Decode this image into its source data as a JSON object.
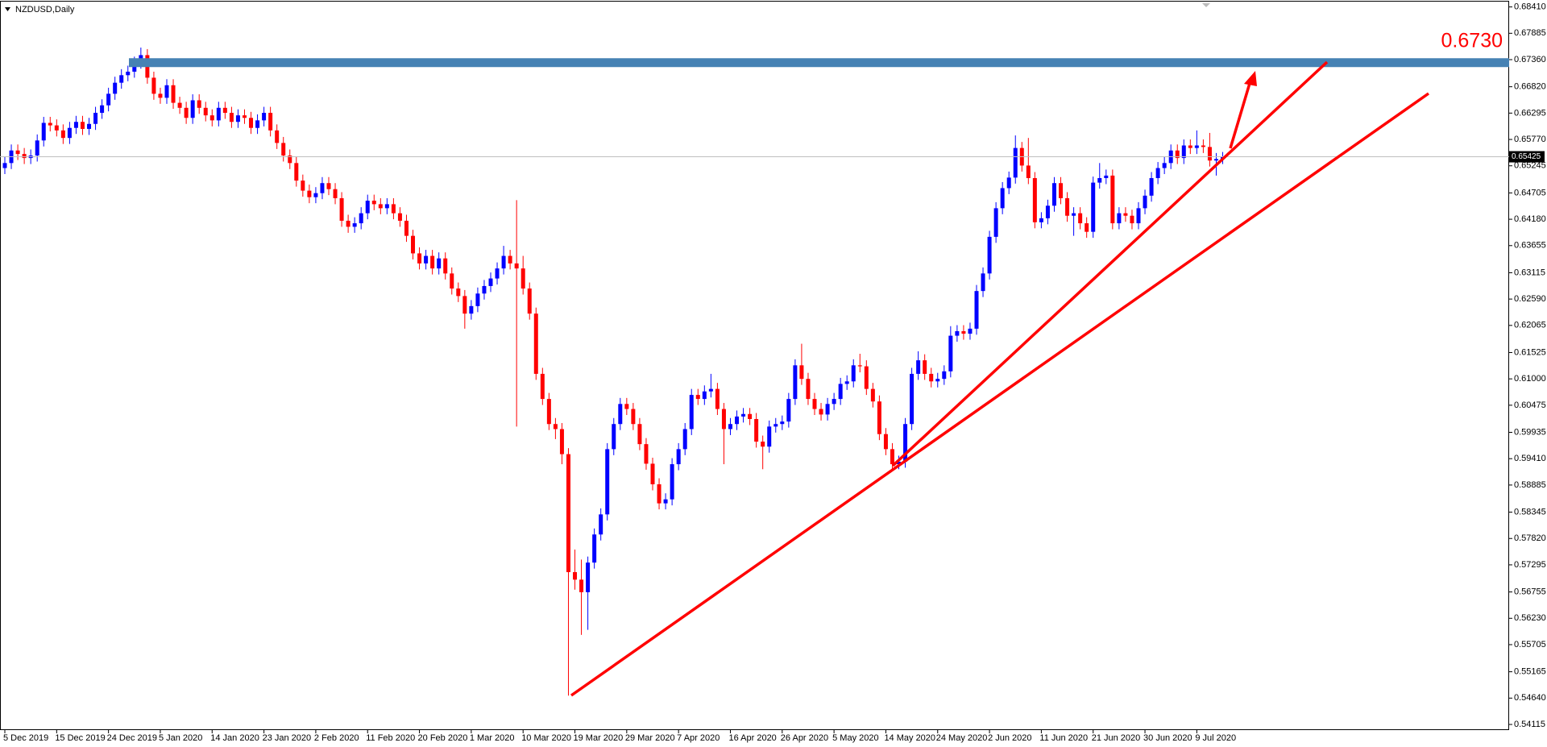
{
  "chart_data": {
    "type": "candlestick",
    "title": "NZDUSD,Daily",
    "up_color": "#0000ff",
    "down_color": "#ff0000",
    "level": {
      "value": 0.673,
      "label": "0.6730"
    },
    "level_color": "#4682b4",
    "last_price": 0.65425,
    "ylim": [
      0.54003,
      0.68516
    ],
    "yticks": [
      {
        "value": 0.6841,
        "label": "0.68410"
      },
      0.67885,
      {
        "value": 0.6736,
        "label": "0.67360"
      },
      {
        "value": 0.6682,
        "label": "0.66820"
      },
      0.66295,
      {
        "value": 0.6577,
        "label": "0.65770"
      },
      0.65245,
      0.64705,
      {
        "value": 0.6418,
        "label": "0.64180"
      },
      0.63655,
      0.63115,
      {
        "value": 0.6259,
        "label": "0.62590"
      },
      0.62065,
      0.61525,
      {
        "value": 0.61,
        "label": "0.61000"
      },
      0.60475,
      0.59935,
      {
        "value": 0.5941,
        "label": "0.59410"
      },
      0.58885,
      0.58345,
      {
        "value": 0.5782,
        "label": "0.57820"
      },
      0.57295,
      0.56755,
      {
        "value": 0.5623,
        "label": "0.56230"
      },
      0.55705,
      0.55165,
      {
        "value": 0.5464,
        "label": "0.54640"
      },
      0.54115
    ],
    "categories": [
      "5 Dec 2019",
      null,
      null,
      null,
      null,
      null,
      null,
      null,
      "15 Dec 2019",
      null,
      null,
      null,
      null,
      null,
      null,
      null,
      "24 Dec 2019",
      null,
      null,
      null,
      null,
      null,
      null,
      null,
      "5 Jan 2020",
      null,
      null,
      null,
      null,
      null,
      null,
      null,
      "14 Jan 2020",
      null,
      null,
      null,
      null,
      null,
      null,
      null,
      "23 Jan 2020",
      null,
      null,
      null,
      null,
      null,
      null,
      null,
      "2 Feb 2020",
      null,
      null,
      null,
      null,
      null,
      null,
      null,
      "11 Feb 2020",
      null,
      null,
      null,
      null,
      null,
      null,
      null,
      "20 Feb 2020",
      null,
      null,
      null,
      null,
      null,
      null,
      null,
      "1 Mar 2020",
      null,
      null,
      null,
      null,
      null,
      null,
      null,
      "10 Mar 2020",
      null,
      null,
      null,
      null,
      null,
      null,
      null,
      "19 Mar 2020",
      null,
      null,
      null,
      null,
      null,
      null,
      null,
      "29 Mar 2020",
      null,
      null,
      null,
      null,
      null,
      null,
      null,
      "7 Apr 2020",
      null,
      null,
      null,
      null,
      null,
      null,
      null,
      "16 Apr 2020",
      null,
      null,
      null,
      null,
      null,
      null,
      null,
      "26 Apr 2020",
      null,
      null,
      null,
      null,
      null,
      null,
      null,
      "5 May 2020",
      null,
      null,
      null,
      null,
      null,
      null,
      null,
      "14 May 2020",
      null,
      null,
      null,
      null,
      null,
      null,
      null,
      "24 May 2020",
      null,
      null,
      null,
      null,
      null,
      null,
      null,
      "2 Jun 2020",
      null,
      null,
      null,
      null,
      null,
      null,
      null,
      "11 Jun 2020",
      null,
      null,
      null,
      null,
      null,
      null,
      null,
      "21 Jun 2020",
      null,
      null,
      null,
      null,
      null,
      null,
      null,
      "30 Jun 2020",
      null,
      null,
      null,
      null,
      null,
      null,
      null,
      "9 Jul 2020",
      null,
      null,
      null,
      null
    ],
    "open": [
      0.652,
      0.653,
      0.6555,
      0.6548,
      0.654,
      0.6545,
      0.6575,
      0.661,
      0.6605,
      0.6595,
      0.658,
      0.66,
      0.6612,
      0.6598,
      0.6608,
      0.663,
      0.6645,
      0.6668,
      0.669,
      0.6705,
      0.6712,
      0.673,
      0.6745,
      0.67,
      0.6668,
      0.666,
      0.6685,
      0.665,
      0.664,
      0.662,
      0.6655,
      0.664,
      0.6625,
      0.6615,
      0.664,
      0.663,
      0.6612,
      0.6625,
      0.662,
      0.66,
      0.6615,
      0.663,
      0.6595,
      0.657,
      0.6545,
      0.653,
      0.6495,
      0.6475,
      0.6462,
      0.647,
      0.649,
      0.6478,
      0.646,
      0.6415,
      0.6403,
      0.641,
      0.643,
      0.6455,
      0.6448,
      0.644,
      0.6448,
      0.643,
      0.6415,
      0.6385,
      0.635,
      0.633,
      0.6345,
      0.632,
      0.634,
      0.631,
      0.628,
      0.6265,
      0.623,
      0.6245,
      0.627,
      0.6285,
      0.63,
      0.632,
      0.6345,
      0.633,
      0.632,
      0.628,
      0.623,
      0.611,
      0.606,
      0.601,
      0.6,
      0.595,
      0.5715,
      0.57,
      0.5675,
      0.5734,
      0.579,
      0.583,
      0.596,
      0.601,
      0.605,
      0.604,
      0.601,
      0.597,
      0.5931,
      0.589,
      0.5852,
      0.586,
      0.593,
      0.596,
      0.6,
      0.6068,
      0.606,
      0.6075,
      0.608,
      0.604,
      0.6,
      0.601,
      0.6025,
      0.603,
      0.602,
      0.5975,
      0.5965,
      0.6005,
      0.601,
      0.6015,
      0.606,
      0.6127,
      0.61,
      0.606,
      0.604,
      0.6029,
      0.605,
      0.606,
      0.609,
      0.6095,
      0.6127,
      0.6125,
      0.608,
      0.6055,
      0.599,
      0.596,
      0.593,
      0.5935,
      0.601,
      0.611,
      0.6137,
      0.611,
      0.6095,
      0.61,
      0.6115,
      0.6186,
      0.6195,
      0.619,
      0.62,
      0.6275,
      0.631,
      0.6383,
      0.644,
      0.648,
      0.6501,
      0.656,
      0.6525,
      0.65,
      0.6412,
      0.642,
      0.6445,
      0.649,
      0.646,
      0.6425,
      0.643,
      0.641,
      0.6393,
      0.6491,
      0.65,
      0.6505,
      0.641,
      0.643,
      0.6425,
      0.641,
      0.644,
      0.6465,
      0.65,
      0.652,
      0.653,
      0.6555,
      0.654,
      0.6565,
      0.656,
      0.6565,
      0.6562,
      0.6535,
      0.6538
    ],
    "high": [
      0.6542,
      0.6567,
      0.6567,
      0.656,
      0.6557,
      0.6587,
      0.6622,
      0.6622,
      0.6617,
      0.6607,
      0.6612,
      0.6624,
      0.6624,
      0.662,
      0.6642,
      0.6657,
      0.668,
      0.6702,
      0.6717,
      0.6724,
      0.6742,
      0.676,
      0.6757,
      0.6712,
      0.668,
      0.6697,
      0.6697,
      0.6662,
      0.6652,
      0.6667,
      0.6667,
      0.6652,
      0.6637,
      0.6652,
      0.6652,
      0.6642,
      0.6637,
      0.6637,
      0.6632,
      0.6627,
      0.6642,
      0.6642,
      0.6607,
      0.6582,
      0.6557,
      0.6542,
      0.6507,
      0.6487,
      0.6482,
      0.6502,
      0.6502,
      0.649,
      0.6472,
      0.6427,
      0.6422,
      0.6442,
      0.6467,
      0.6467,
      0.646,
      0.646,
      0.646,
      0.6442,
      0.6427,
      0.6397,
      0.6362,
      0.6357,
      0.6357,
      0.6352,
      0.6352,
      0.6322,
      0.6292,
      0.6277,
      0.6257,
      0.6282,
      0.6297,
      0.6312,
      0.6332,
      0.6365,
      0.6357,
      0.6456,
      0.6345,
      0.6292,
      0.6242,
      0.6122,
      0.6072,
      0.6022,
      0.6012,
      0.5962,
      0.576,
      0.574,
      0.5746,
      0.5802,
      0.5842,
      0.5972,
      0.6022,
      0.6062,
      0.6062,
      0.6052,
      0.6022,
      0.5982,
      0.5943,
      0.5902,
      0.5872,
      0.5942,
      0.5972,
      0.6012,
      0.608,
      0.608,
      0.6087,
      0.611,
      0.6092,
      0.6052,
      0.6022,
      0.6037,
      0.6042,
      0.6042,
      0.6032,
      0.5987,
      0.6017,
      0.6022,
      0.6027,
      0.6072,
      0.6139,
      0.617,
      0.6112,
      0.6072,
      0.6052,
      0.6062,
      0.6072,
      0.6102,
      0.6107,
      0.6139,
      0.615,
      0.6137,
      0.6092,
      0.6067,
      0.6002,
      0.5972,
      0.5947,
      0.6022,
      0.6122,
      0.6155,
      0.6149,
      0.6122,
      0.6112,
      0.6127,
      0.6205,
      0.6207,
      0.6207,
      0.6212,
      0.6287,
      0.6322,
      0.6395,
      0.6452,
      0.6492,
      0.6513,
      0.6585,
      0.6572,
      0.658,
      0.6512,
      0.6432,
      0.6457,
      0.6502,
      0.6502,
      0.6472,
      0.6442,
      0.6442,
      0.6422,
      0.6503,
      0.653,
      0.6517,
      0.6517,
      0.6442,
      0.6442,
      0.6437,
      0.6452,
      0.6477,
      0.6512,
      0.6532,
      0.6542,
      0.6567,
      0.6567,
      0.6577,
      0.6577,
      0.6595,
      0.6577,
      0.659,
      0.655,
      0.6552
    ],
    "low": [
      0.6508,
      0.6518,
      0.6536,
      0.6528,
      0.6528,
      0.6533,
      0.6563,
      0.6593,
      0.6583,
      0.6568,
      0.6568,
      0.6588,
      0.6586,
      0.6586,
      0.6596,
      0.6618,
      0.6633,
      0.6656,
      0.6678,
      0.6693,
      0.67,
      0.6718,
      0.6688,
      0.6656,
      0.6648,
      0.6648,
      0.6638,
      0.6628,
      0.6608,
      0.6608,
      0.6628,
      0.6613,
      0.6603,
      0.6603,
      0.6618,
      0.66,
      0.66,
      0.6608,
      0.6588,
      0.6588,
      0.6603,
      0.6583,
      0.6558,
      0.6533,
      0.6518,
      0.6483,
      0.6463,
      0.645,
      0.645,
      0.6458,
      0.6466,
      0.6448,
      0.6403,
      0.6391,
      0.6391,
      0.6398,
      0.6418,
      0.6436,
      0.6428,
      0.6428,
      0.6418,
      0.6403,
      0.6373,
      0.6338,
      0.6318,
      0.6318,
      0.6308,
      0.6308,
      0.6298,
      0.6268,
      0.6253,
      0.62,
      0.6218,
      0.6233,
      0.6258,
      0.6273,
      0.6288,
      0.6308,
      0.6318,
      0.6005,
      0.6268,
      0.6218,
      0.6098,
      0.6048,
      0.5998,
      0.598,
      0.593,
      0.5469,
      0.568,
      0.559,
      0.56,
      0.5722,
      0.5778,
      0.5818,
      0.5948,
      0.5998,
      0.6028,
      0.5998,
      0.5958,
      0.5919,
      0.5878,
      0.584,
      0.584,
      0.5848,
      0.5918,
      0.5948,
      0.5988,
      0.6048,
      0.6048,
      0.6063,
      0.6028,
      0.593,
      0.5988,
      0.5998,
      0.6013,
      0.6008,
      0.5963,
      0.592,
      0.5953,
      0.5993,
      0.5998,
      0.6003,
      0.6048,
      0.6088,
      0.6048,
      0.6028,
      0.6017,
      0.6017,
      0.6038,
      0.6048,
      0.6078,
      0.6083,
      0.6113,
      0.6068,
      0.6043,
      0.5978,
      0.5948,
      0.5918,
      0.592,
      0.5923,
      0.5998,
      0.6098,
      0.6098,
      0.6083,
      0.6083,
      0.6088,
      0.6103,
      0.6174,
      0.6178,
      0.6178,
      0.6188,
      0.6263,
      0.6298,
      0.6371,
      0.6428,
      0.6468,
      0.6489,
      0.6513,
      0.6488,
      0.64,
      0.64,
      0.6408,
      0.6433,
      0.6448,
      0.6413,
      0.6385,
      0.6398,
      0.6381,
      0.6381,
      0.6479,
      0.6488,
      0.6398,
      0.6398,
      0.6413,
      0.6398,
      0.6398,
      0.6428,
      0.6453,
      0.6488,
      0.6508,
      0.6518,
      0.6528,
      0.6528,
      0.6548,
      0.6548,
      0.655,
      0.6523,
      0.6505,
      0.6528
    ],
    "close": [
      0.653,
      0.6555,
      0.6548,
      0.654,
      0.6545,
      0.6575,
      0.661,
      0.6605,
      0.6595,
      0.658,
      0.66,
      0.6612,
      0.6598,
      0.6608,
      0.663,
      0.6645,
      0.6668,
      0.669,
      0.6705,
      0.6712,
      0.673,
      0.6745,
      0.67,
      0.6668,
      0.666,
      0.6685,
      0.665,
      0.664,
      0.662,
      0.6655,
      0.664,
      0.6625,
      0.6615,
      0.664,
      0.663,
      0.6612,
      0.6625,
      0.662,
      0.66,
      0.6615,
      0.663,
      0.6595,
      0.657,
      0.6545,
      0.653,
      0.6495,
      0.6475,
      0.6462,
      0.647,
      0.649,
      0.6478,
      0.646,
      0.6415,
      0.6403,
      0.641,
      0.643,
      0.6455,
      0.6448,
      0.644,
      0.6448,
      0.643,
      0.6415,
      0.6385,
      0.635,
      0.633,
      0.6345,
      0.632,
      0.634,
      0.631,
      0.628,
      0.6265,
      0.623,
      0.6245,
      0.627,
      0.6285,
      0.63,
      0.632,
      0.6345,
      0.633,
      0.632,
      0.628,
      0.623,
      0.611,
      0.606,
      0.601,
      0.6,
      0.595,
      0.5715,
      0.57,
      0.5675,
      0.5734,
      0.579,
      0.583,
      0.596,
      0.601,
      0.605,
      0.604,
      0.601,
      0.597,
      0.5931,
      0.589,
      0.5852,
      0.586,
      0.593,
      0.596,
      0.6,
      0.6068,
      0.606,
      0.6075,
      0.608,
      0.604,
      0.6,
      0.601,
      0.6025,
      0.603,
      0.602,
      0.5975,
      0.5965,
      0.6005,
      0.601,
      0.6015,
      0.606,
      0.6127,
      0.61,
      0.606,
      0.604,
      0.6029,
      0.605,
      0.606,
      0.609,
      0.6095,
      0.6127,
      0.6125,
      0.608,
      0.6055,
      0.599,
      0.596,
      0.593,
      0.5935,
      0.601,
      0.611,
      0.6137,
      0.611,
      0.6095,
      0.61,
      0.6115,
      0.6186,
      0.6195,
      0.619,
      0.62,
      0.6275,
      0.631,
      0.6383,
      0.644,
      0.648,
      0.6501,
      0.656,
      0.6525,
      0.65,
      0.6412,
      0.642,
      0.6445,
      0.649,
      0.646,
      0.6425,
      0.643,
      0.641,
      0.6393,
      0.6491,
      0.65,
      0.6505,
      0.641,
      0.643,
      0.6425,
      0.641,
      0.644,
      0.6465,
      0.65,
      0.652,
      0.653,
      0.6555,
      0.654,
      0.6565,
      0.656,
      0.6565,
      0.6562,
      0.6535,
      0.6538,
      0.65425
    ]
  }
}
